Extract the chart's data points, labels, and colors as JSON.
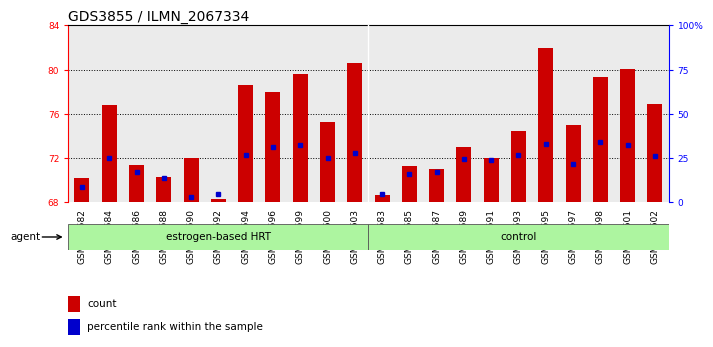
{
  "title": "GDS3855 / ILMN_2067334",
  "samples": [
    "GSM535582",
    "GSM535584",
    "GSM535586",
    "GSM535588",
    "GSM535590",
    "GSM535592",
    "GSM535594",
    "GSM535596",
    "GSM535599",
    "GSM535600",
    "GSM535603",
    "GSM535583",
    "GSM535585",
    "GSM535587",
    "GSM535589",
    "GSM535591",
    "GSM535593",
    "GSM535595",
    "GSM535597",
    "GSM535598",
    "GSM535601",
    "GSM535602"
  ],
  "bar_heights": [
    70.2,
    76.8,
    71.4,
    70.3,
    72.0,
    68.3,
    78.6,
    78.0,
    79.6,
    75.3,
    80.6,
    68.7,
    71.3,
    71.0,
    73.0,
    72.0,
    74.5,
    82.0,
    75.0,
    79.3,
    80.1,
    76.9
  ],
  "blue_markers": [
    69.4,
    72.0,
    70.8,
    70.2,
    68.5,
    68.8,
    72.3,
    73.0,
    73.2,
    72.0,
    72.5,
    68.8,
    70.6,
    70.8,
    71.9,
    71.8,
    72.3,
    73.3,
    71.5,
    73.5,
    73.2,
    72.2
  ],
  "group_labels": [
    "estrogen-based HRT",
    "control"
  ],
  "group_sizes": [
    11,
    11
  ],
  "bar_color": "#cc0000",
  "marker_color": "#0000cc",
  "ylim_left": [
    68,
    84
  ],
  "yticks_left": [
    68,
    72,
    76,
    80,
    84
  ],
  "ylim_right": [
    0,
    100
  ],
  "yticks_right": [
    0,
    25,
    50,
    75,
    100
  ],
  "ylabel_right_labels": [
    "0",
    "25",
    "50",
    "75",
    "100%"
  ],
  "background_color": "#ffffff",
  "title_fontsize": 10,
  "tick_fontsize": 6.5,
  "agent_label": "agent",
  "legend_count_label": "count",
  "legend_pct_label": "percentile rank within the sample"
}
